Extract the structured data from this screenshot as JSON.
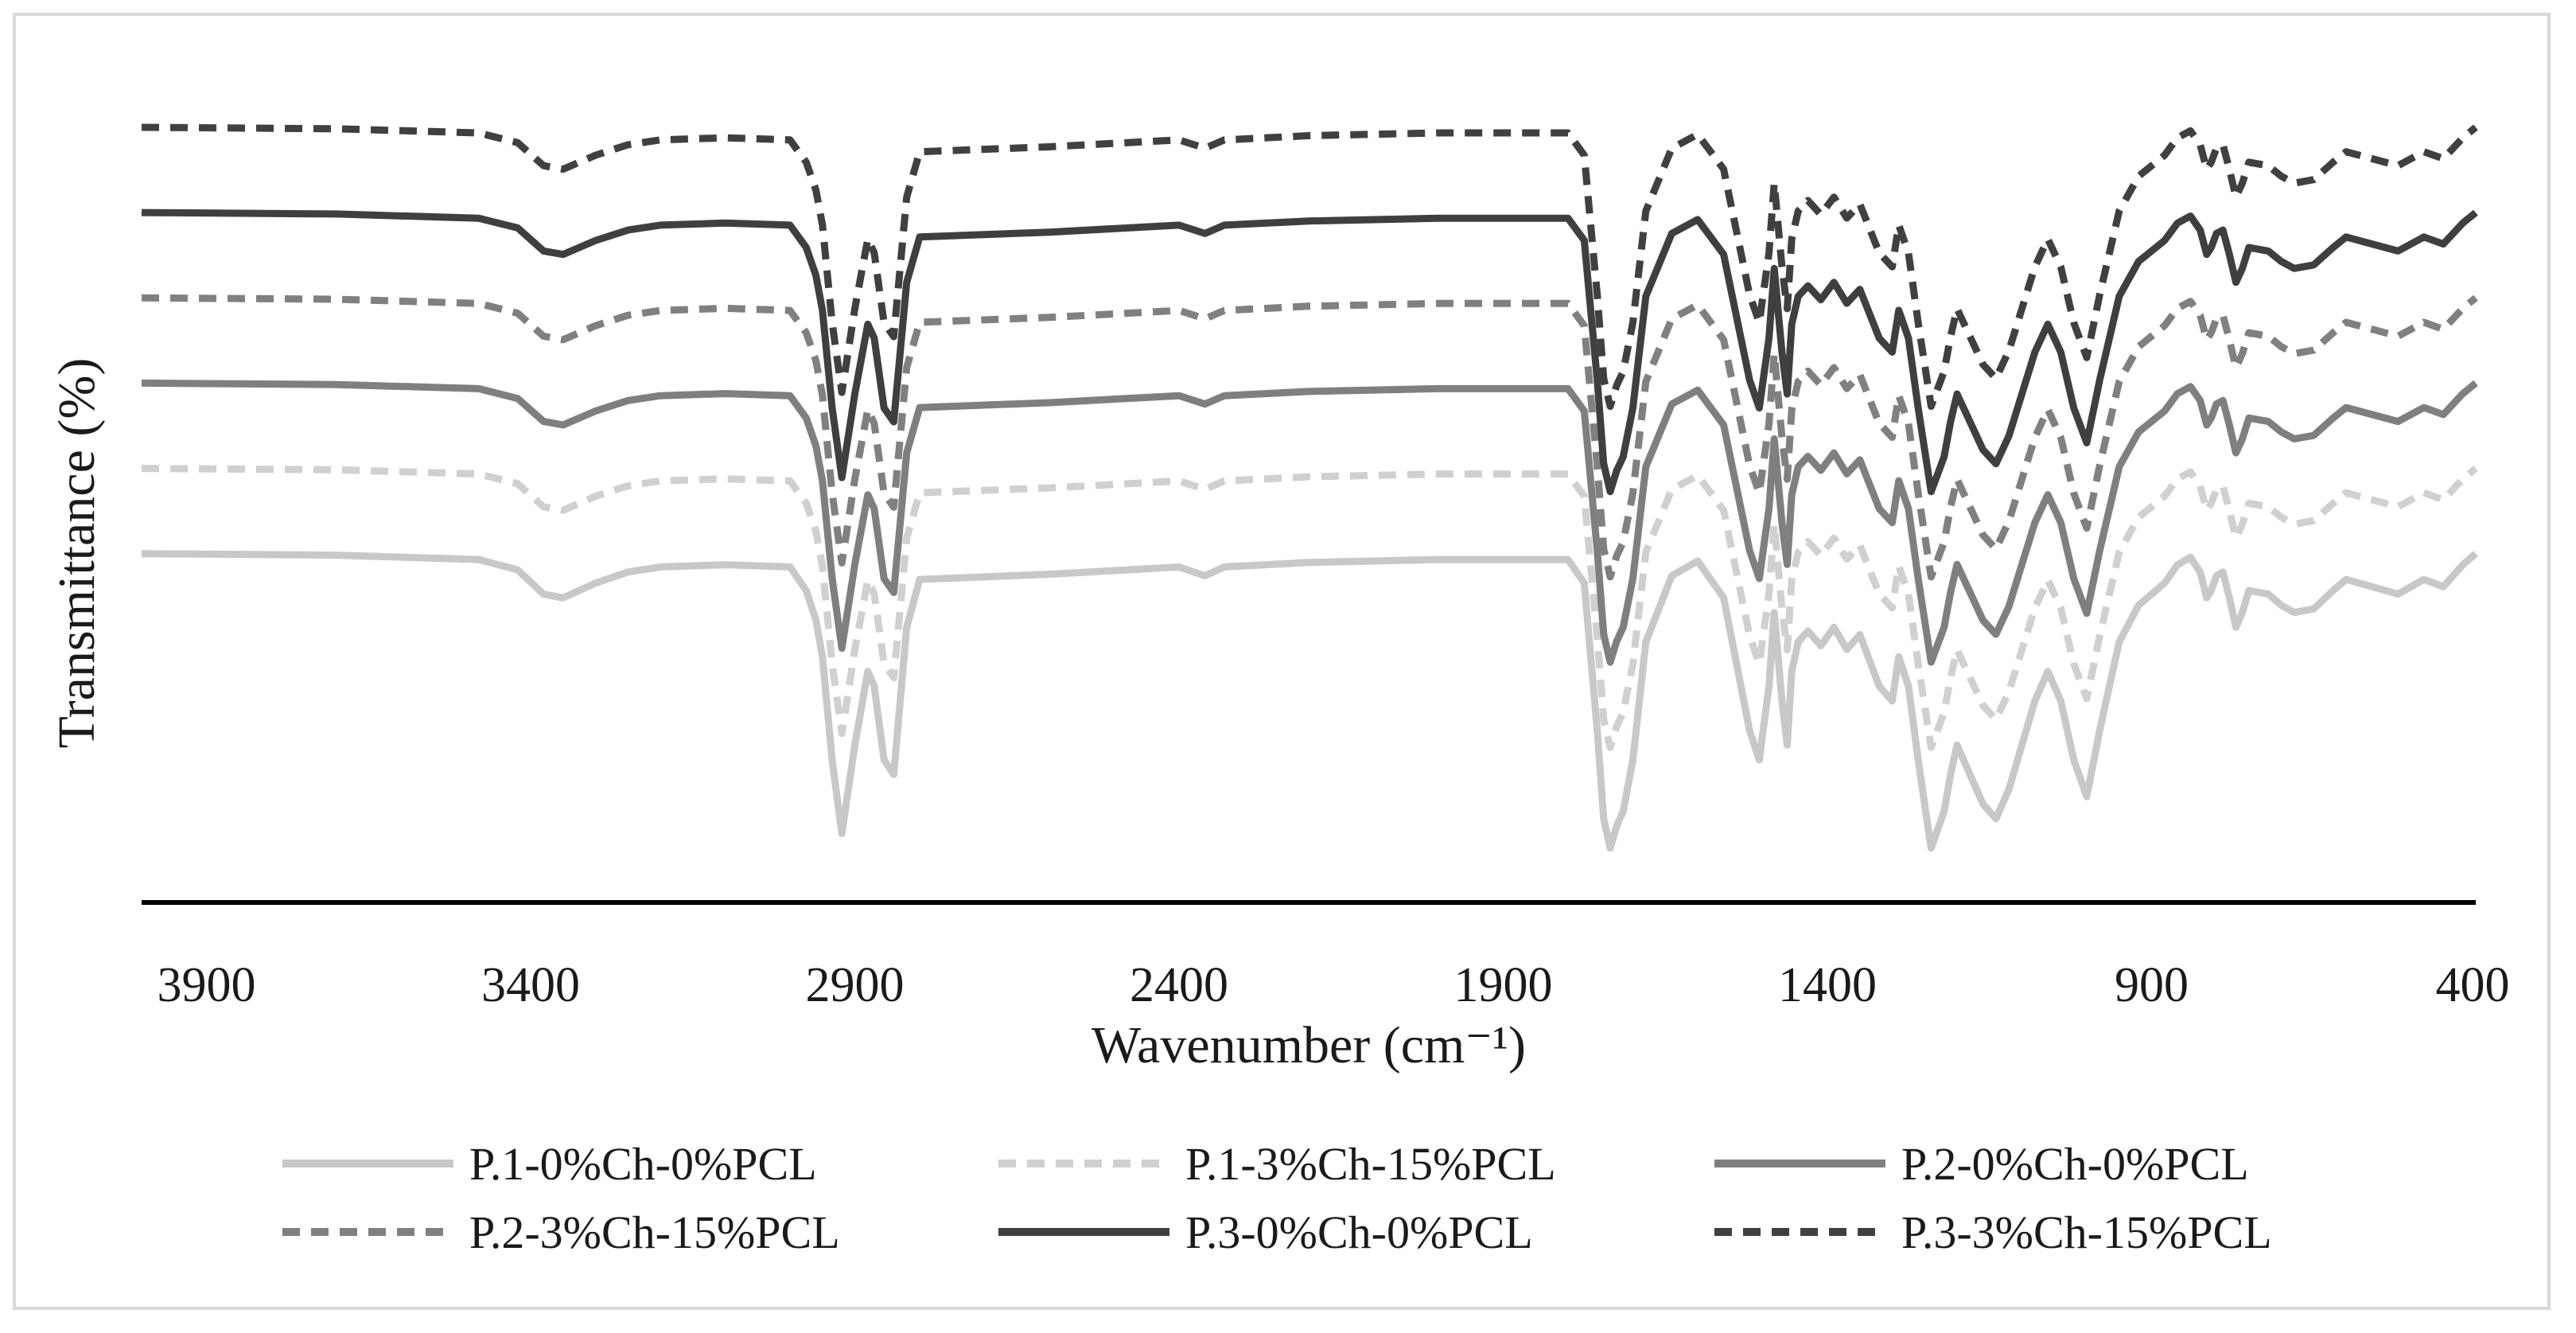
{
  "chart_data": {
    "type": "line",
    "title": "",
    "xlabel": "Wavenumber (cm⁻¹)",
    "ylabel": "Transmittance (%)",
    "xlim": [
      4000,
      400
    ],
    "x_reversed": true,
    "ylim": [
      0,
      100
    ],
    "y_ticks_shown": false,
    "grid": false,
    "legend_position": "bottom",
    "x_ticks": [
      3900,
      3400,
      2900,
      2400,
      1900,
      1400,
      900,
      400
    ],
    "x_tick_labels": [
      "3900",
      "3400",
      "2900",
      "2400",
      "1900",
      "1400",
      "900",
      "400"
    ],
    "baseline_pattern": {
      "x": [
        4000,
        3700,
        3480,
        3420,
        3380,
        3350,
        3300,
        3250,
        3200,
        3100,
        3000,
        2975,
        2960,
        2950,
        2935,
        2920,
        2900,
        2880,
        2870,
        2855,
        2840,
        2820,
        2800,
        2600,
        2400,
        2360,
        2330,
        2200,
        2000,
        1800,
        1775,
        1765,
        1755,
        1745,
        1735,
        1725,
        1715,
        1700,
        1680,
        1640,
        1600,
        1560,
        1520,
        1505,
        1490,
        1482,
        1470,
        1462,
        1455,
        1445,
        1430,
        1410,
        1390,
        1370,
        1350,
        1320,
        1300,
        1290,
        1275,
        1260,
        1240,
        1220,
        1210,
        1200,
        1180,
        1160,
        1140,
        1120,
        1100,
        1080,
        1060,
        1040,
        1020,
        1000,
        980,
        950,
        920,
        880,
        860,
        840,
        825,
        815,
        808,
        800,
        790,
        780,
        770,
        760,
        750,
        720,
        700,
        680,
        650,
        620,
        600,
        560,
        520,
        480,
        450,
        420,
        400
      ],
      "shape": [
        0.0,
        0.2,
        0.8,
        2.2,
        5.5,
        6.0,
        4.0,
        2.5,
        1.8,
        1.5,
        1.8,
        5.0,
        9.0,
        14.0,
        28.0,
        38.0,
        26.0,
        16.0,
        18.0,
        28.0,
        30.0,
        10.0,
        3.5,
        2.8,
        1.8,
        3.0,
        1.8,
        1.2,
        0.8,
        0.8,
        4.0,
        14.0,
        24.0,
        36.0,
        40.0,
        37.0,
        35.0,
        28.0,
        12.0,
        3.0,
        1.0,
        6.0,
        24.0,
        28.0,
        18.0,
        8.0,
        20.0,
        26.0,
        16.0,
        12.0,
        10.5,
        12.5,
        10.0,
        13.0,
        11.0,
        18.0,
        20.0,
        14.0,
        18.0,
        28.0,
        40.0,
        35.0,
        30.0,
        26.0,
        30.0,
        34.0,
        36.0,
        32.0,
        26.0,
        20.0,
        16.0,
        20.0,
        28.0,
        33.0,
        24.0,
        12.0,
        7.0,
        4.0,
        1.5,
        0.5,
        2.5,
        6.0,
        5.0,
        3.0,
        2.5,
        6.0,
        10.0,
        8.0,
        5.0,
        5.5,
        7.0,
        8.0,
        7.5,
        5.0,
        3.5,
        4.5,
        5.5,
        3.5,
        4.5,
        1.5,
        0.0
      ]
    },
    "series": [
      {
        "name": "P.1-0%Ch-0%PCL",
        "offset": 45,
        "scale": 0.95,
        "color": "#c8c8c8",
        "dash": "solid"
      },
      {
        "name": "P.1-3%Ch-15%PCL",
        "offset": 56,
        "scale": 0.9,
        "color": "#d0d0d0",
        "dash": "dashed"
      },
      {
        "name": "P.2-0%Ch-0%PCL",
        "offset": 67,
        "scale": 0.9,
        "color": "#7f7f7f",
        "dash": "solid"
      },
      {
        "name": "P.2-3%Ch-15%PCL",
        "offset": 78,
        "scale": 0.9,
        "color": "#808080",
        "dash": "dashed"
      },
      {
        "name": "P.3-0%Ch-0%PCL",
        "offset": 89,
        "scale": 0.9,
        "color": "#3f3f3f",
        "dash": "solid"
      },
      {
        "name": "P.3-3%Ch-15%PCL",
        "offset": 100,
        "scale": 0.9,
        "color": "#404040",
        "dash": "dashed"
      }
    ]
  }
}
